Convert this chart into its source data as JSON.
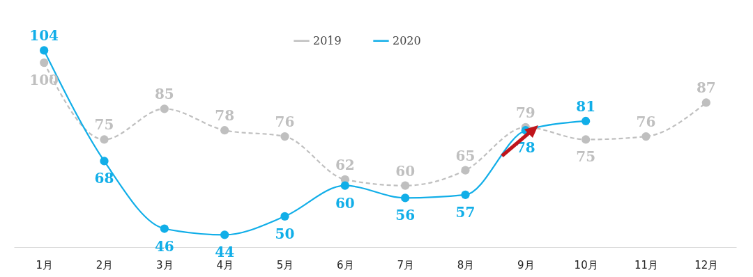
{
  "chart_data": {
    "type": "line",
    "categories": [
      "1月",
      "2月",
      "3月",
      "4月",
      "5月",
      "6月",
      "7月",
      "8月",
      "9月",
      "10月",
      "11月",
      "12月"
    ],
    "series": [
      {
        "name": "2019",
        "color": "#bfbfbf",
        "line_style": "dashed",
        "values": [
          100,
          75,
          85,
          78,
          76,
          62,
          60,
          65,
          79,
          75,
          76,
          87
        ]
      },
      {
        "name": "2020",
        "color": "#11aee8",
        "line_style": "solid",
        "values": [
          104,
          68,
          46,
          44,
          50,
          60,
          56,
          57,
          78,
          81,
          null,
          null
        ]
      }
    ],
    "data_labels": true,
    "legend": "top",
    "marker": "circle"
  }
}
